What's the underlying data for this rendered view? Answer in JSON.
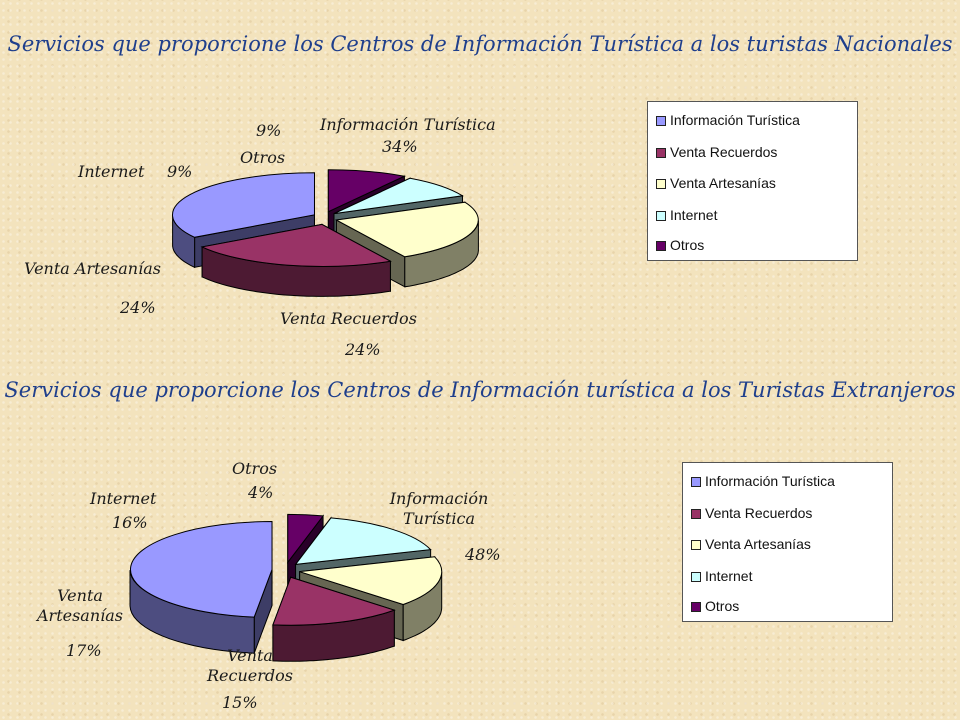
{
  "chart_data": [
    {
      "type": "pie",
      "title": "Servicios que proporcione los Centros de Información Turística a los turistas Nacionales",
      "categories": [
        "Información Turística",
        "Venta Recuerdos",
        "Venta Artesanías",
        "Internet",
        "Otros"
      ],
      "values": [
        34,
        24,
        24,
        9,
        9
      ],
      "value_labels": [
        "34%",
        "24%",
        "24%",
        "9%",
        "9%"
      ],
      "colors": [
        "#9999ff",
        "#993366",
        "#ffffcc",
        "#ccffff",
        "#660066"
      ],
      "legend": {
        "placement": "right",
        "items": [
          "Información Turística",
          "Venta Recuerdos",
          "Venta Artesanías",
          "Internet",
          "Otros"
        ]
      }
    },
    {
      "type": "pie",
      "title": "Servicios que proporcione los Centros de Información turística a los Turistas Extranjeros",
      "categories": [
        "Información Turística",
        "Venta Recuerdos",
        "Venta Artesanías",
        "Internet",
        "Otros"
      ],
      "values": [
        48,
        15,
        17,
        16,
        4
      ],
      "value_labels": [
        "48%",
        "15%",
        "17%",
        "16%",
        "4%"
      ],
      "colors": [
        "#9999ff",
        "#993366",
        "#ffffcc",
        "#ccffff",
        "#660066"
      ],
      "legend": {
        "placement": "right",
        "items": [
          "Información Turística",
          "Venta Recuerdos",
          "Venta Artesanías",
          "Internet",
          "Otros"
        ]
      }
    }
  ]
}
